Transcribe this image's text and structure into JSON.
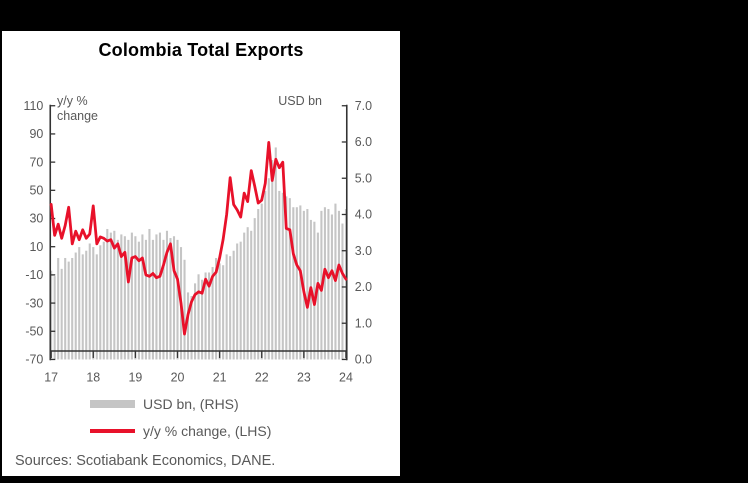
{
  "page": {
    "background": "#000000",
    "panel_background": "#ffffff"
  },
  "chart_data": {
    "type": "bar+line combo",
    "title": "Colombia Total Exports",
    "source": "Sources: Scotiabank Economics, DANE.",
    "x_axis": {
      "frequency": "monthly",
      "start": "2017-01",
      "end": "2024-01",
      "tick_labels": [
        "17",
        "18",
        "19",
        "20",
        "21",
        "22",
        "23",
        "24"
      ]
    },
    "left_axis": {
      "title": "y/y %\nchange",
      "min": -70,
      "max": 110,
      "tick_labels": [
        "110",
        "90",
        "70",
        "50",
        "30",
        "10",
        "-10",
        "-30",
        "-50",
        "-70"
      ]
    },
    "right_axis": {
      "title": "USD bn",
      "min": 0,
      "max": 7,
      "tick_labels": [
        "7.0",
        "6.0",
        "5.0",
        "4.0",
        "3.0",
        "2.0",
        "1.0",
        "0.0"
      ]
    },
    "grid": "off",
    "legend_position": "bottom",
    "series": [
      {
        "name": "USD bn, (RHS)",
        "type": "bar",
        "axis": "right",
        "color": "#C5C5C5",
        "values": [
          2.45,
          2.3,
          2.8,
          2.5,
          2.8,
          2.7,
          2.8,
          2.95,
          3.1,
          2.9,
          3.0,
          3.2,
          3.1,
          2.9,
          3.15,
          3.25,
          3.6,
          3.5,
          3.55,
          3.3,
          3.45,
          3.4,
          3.3,
          3.5,
          3.4,
          3.25,
          3.45,
          3.3,
          3.6,
          3.3,
          3.45,
          3.5,
          3.3,
          3.55,
          3.35,
          3.4,
          3.3,
          3.1,
          2.75,
          1.85,
          1.75,
          2.1,
          2.35,
          2.2,
          2.4,
          2.4,
          2.55,
          2.8,
          2.65,
          2.6,
          2.9,
          2.85,
          3.0,
          3.2,
          3.25,
          3.5,
          3.65,
          3.55,
          3.9,
          4.15,
          4.3,
          4.65,
          5.0,
          5.5,
          5.85,
          4.65,
          4.6,
          4.5,
          4.45,
          4.2,
          4.2,
          4.25,
          4.1,
          4.15,
          3.85,
          3.8,
          3.5,
          4.1,
          4.2,
          4.15,
          4.0,
          4.3,
          4.1,
          3.75,
          4.15
        ]
      },
      {
        "name": "y/y % change, (LHS)",
        "type": "line",
        "axis": "left",
        "color": "#E8112A",
        "values": [
          40,
          18,
          26,
          16,
          25,
          38,
          12,
          21,
          15,
          22,
          16,
          19,
          39,
          12,
          17,
          16,
          14,
          15,
          9,
          12,
          3,
          6,
          -15,
          2,
          3,
          0,
          2,
          -10,
          -11,
          -9,
          -12,
          -11,
          -3,
          6,
          12,
          -7,
          -13,
          -30,
          -52,
          -38,
          -29,
          -24,
          -22,
          -23,
          -13,
          -18,
          -11,
          -8,
          2,
          15,
          33,
          59,
          40,
          36,
          31,
          48,
          42,
          64,
          53,
          41,
          43,
          55,
          84,
          57,
          72,
          66,
          70,
          23,
          22,
          5,
          -3,
          -7,
          -22,
          -33,
          -19,
          -31,
          -16,
          -21,
          -6,
          -12,
          -7,
          -14,
          -3,
          -9,
          -13
        ]
      }
    ],
    "style": {
      "axis_line_color": "#333333",
      "tick_label_color": "#595959",
      "legend_text_color": "#595959"
    }
  }
}
